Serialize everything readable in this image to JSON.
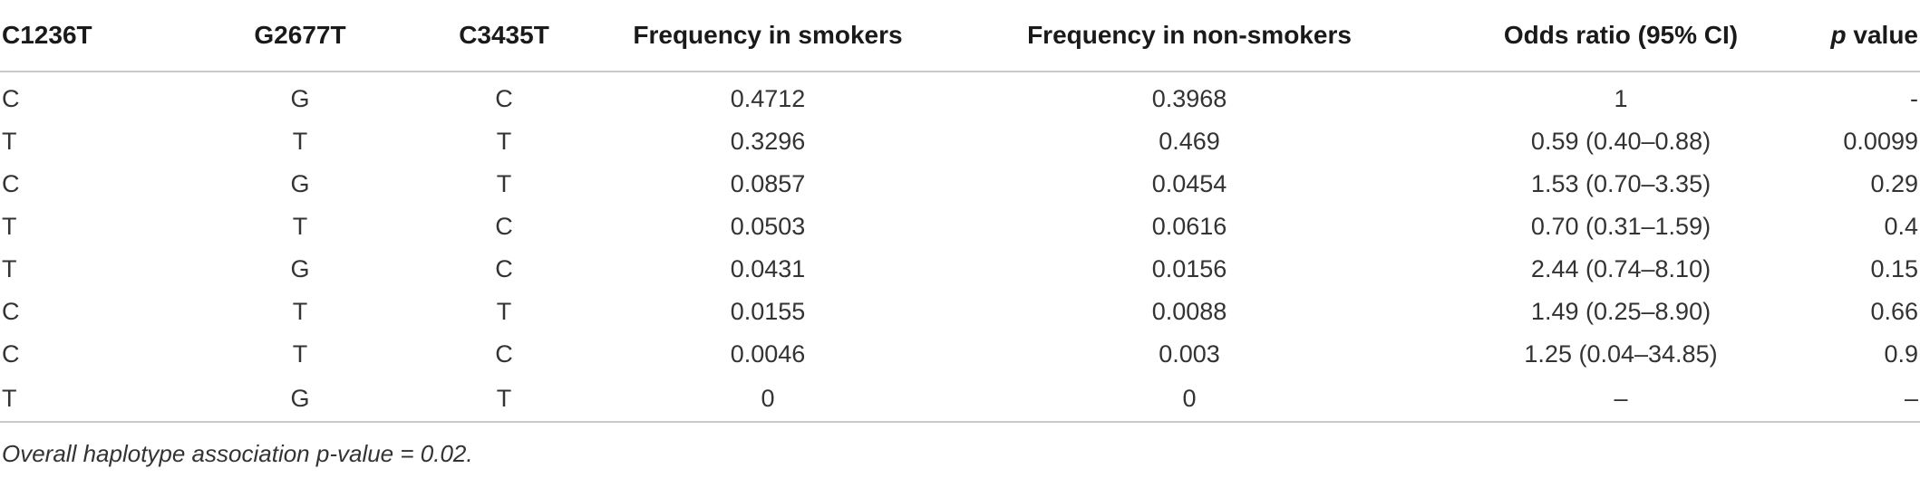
{
  "table": {
    "headers": [
      {
        "text": "C1236T"
      },
      {
        "text": "G2677T"
      },
      {
        "text": "C3435T"
      },
      {
        "text": "Frequency in smokers"
      },
      {
        "text": "Frequency in non-smokers"
      },
      {
        "text": "Odds ratio (95% CI)"
      },
      {
        "italic": "p",
        "text": " value"
      }
    ],
    "rows": [
      [
        "C",
        "G",
        "C",
        "0.4712",
        "0.3968",
        "1",
        "-"
      ],
      [
        "T",
        "T",
        "T",
        "0.3296",
        "0.469",
        "0.59 (0.40–0.88)",
        "0.0099"
      ],
      [
        "C",
        "G",
        "T",
        "0.0857",
        "0.0454",
        "1.53 (0.70–3.35)",
        "0.29"
      ],
      [
        "T",
        "T",
        "C",
        "0.0503",
        "0.0616",
        "0.70 (0.31–1.59)",
        "0.4"
      ],
      [
        "T",
        "G",
        "C",
        "0.0431",
        "0.0156",
        "2.44 (0.74–8.10)",
        "0.15"
      ],
      [
        "C",
        "T",
        "T",
        "0.0155",
        "0.0088",
        "1.49 (0.25–8.90)",
        "0.66"
      ],
      [
        "C",
        "T",
        "C",
        "0.0046",
        "0.003",
        "1.25 (0.04–34.85)",
        "0.9"
      ],
      [
        "T",
        "G",
        "T",
        "0",
        "0",
        "–",
        "–"
      ]
    ]
  },
  "footnote": "Overall haplotype association p-value = 0.02."
}
